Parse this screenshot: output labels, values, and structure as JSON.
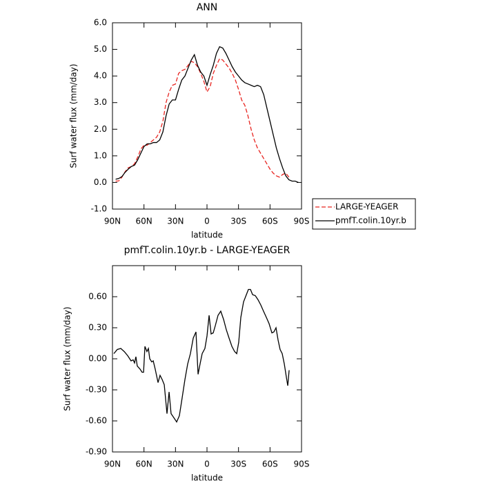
{
  "chart_data": [
    {
      "type": "line",
      "title": "ANN",
      "xlabel": "latitude",
      "ylabel": "Surf water flux (mm/day)",
      "x": [
        87,
        84,
        81,
        78,
        75,
        72,
        69,
        66,
        63,
        60,
        57,
        54,
        51,
        48,
        45,
        42,
        39,
        36,
        33,
        30,
        27,
        24,
        21,
        18,
        15,
        12,
        9,
        6,
        3,
        0,
        -3,
        -6,
        -9,
        -12,
        -15,
        -18,
        -21,
        -24,
        -27,
        -30,
        -33,
        -36,
        -39,
        -42,
        -45,
        -48,
        -51,
        -54,
        -57,
        -60,
        -63,
        -66,
        -69,
        -72,
        -75,
        -78,
        -81,
        -84,
        -87
      ],
      "series": [
        {
          "name": "LARGE-YEAGER",
          "color": "#e8231f",
          "dashed": true,
          "values": [
            0.05,
            0.06,
            0.2,
            0.4,
            0.55,
            0.6,
            0.7,
            0.95,
            1.25,
            1.4,
            1.4,
            1.5,
            1.6,
            1.7,
            1.9,
            2.3,
            3.0,
            3.4,
            3.65,
            3.7,
            4.1,
            4.2,
            4.25,
            4.4,
            4.55,
            4.5,
            4.35,
            4.1,
            3.8,
            3.4,
            3.6,
            4.1,
            4.4,
            4.65,
            4.6,
            4.45,
            4.3,
            4.1,
            3.85,
            3.5,
            3.1,
            2.9,
            2.5,
            2.0,
            1.6,
            1.3,
            1.1,
            0.9,
            0.7,
            0.5,
            0.35,
            0.25,
            0.2,
            0.3,
            0.35,
            0.2,
            null,
            null,
            null
          ]
        },
        {
          "name": "pmfT.colin.10yr.b",
          "color": "#000000",
          "dashed": false,
          "values": [
            0.12,
            0.15,
            0.22,
            0.38,
            0.5,
            0.6,
            0.65,
            0.85,
            1.1,
            1.35,
            1.45,
            1.45,
            1.5,
            1.5,
            1.6,
            1.9,
            2.5,
            2.95,
            3.1,
            3.1,
            3.5,
            3.85,
            4.0,
            4.3,
            4.6,
            4.8,
            4.4,
            4.15,
            4.0,
            3.65,
            4.05,
            4.4,
            4.85,
            5.1,
            5.05,
            4.85,
            4.6,
            4.35,
            4.15,
            4.0,
            3.85,
            3.75,
            3.7,
            3.65,
            3.6,
            3.65,
            3.6,
            3.3,
            2.8,
            2.3,
            1.8,
            1.3,
            0.9,
            0.55,
            0.25,
            0.1,
            0.05,
            0.05,
            0.0
          ]
        }
      ],
      "xlim": [
        90,
        -90
      ],
      "xticks": [
        {
          "value": 90,
          "label": "90N"
        },
        {
          "value": 60,
          "label": "60N"
        },
        {
          "value": 30,
          "label": "30N"
        },
        0,
        {
          "value": -30,
          "label": "30S"
        },
        {
          "value": -60,
          "label": "60S"
        },
        {
          "value": -90,
          "label": "90S"
        }
      ],
      "ylim": [
        -1,
        6
      ],
      "yticks": [
        {
          "value": -1,
          "label": "-1.0"
        },
        {
          "value": 0,
          "label": "0.0"
        },
        {
          "value": 1,
          "label": "1.0"
        },
        {
          "value": 2,
          "label": "2.0"
        },
        {
          "value": 3,
          "label": "3.0"
        },
        {
          "value": 4,
          "label": "4.0"
        },
        {
          "value": 5,
          "label": "5.0"
        },
        {
          "value": 6,
          "label": "6.0"
        }
      ],
      "legend": "right"
    },
    {
      "type": "line",
      "title": "pmfT.colin.10yr.b - LARGE-YEAGER",
      "xlabel": "latitude",
      "ylabel": "Surf water flux (mm/day)",
      "x": [
        88.7,
        85.4,
        82.1,
        78.8,
        75.5,
        72.3,
        70.3,
        69.0,
        67.7,
        66.4,
        63.7,
        61.8,
        60.4,
        59.1,
        57.2,
        55.8,
        54.5,
        52.6,
        51.2,
        49.3,
        46.6,
        44.7,
        42.7,
        40.7,
        38.1,
        36.1,
        34.2,
        31.5,
        28.9,
        26.3,
        23.7,
        21.0,
        18.4,
        15.8,
        13.1,
        10.5,
        8.5,
        6.6,
        4.6,
        2.0,
        0,
        -2.0,
        -3.9,
        -5.9,
        -7.9,
        -10.5,
        -13.1,
        -15.8,
        -18.4,
        -21.0,
        -23.7,
        -26.3,
        -28.3,
        -30.2,
        -32.2,
        -34.8,
        -37.5,
        -39.4,
        -41.4,
        -43.4,
        -46.0,
        -48.6,
        -51.2,
        -53.8,
        -56.5,
        -59.1,
        -61.8,
        -63.7,
        -65.7,
        -67.7,
        -69.6,
        -71.6,
        -73.6,
        -75.6,
        -76.9,
        -78.2
      ],
      "values": [
        0.05,
        0.09,
        0.1,
        0.07,
        0.03,
        -0.02,
        -0.01,
        -0.04,
        0.02,
        -0.07,
        -0.1,
        -0.13,
        -0.13,
        0.12,
        0.07,
        0.1,
        0.0,
        -0.03,
        -0.02,
        -0.1,
        -0.23,
        -0.16,
        -0.2,
        -0.25,
        -0.53,
        -0.32,
        -0.53,
        -0.57,
        -0.61,
        -0.55,
        -0.38,
        -0.2,
        -0.05,
        0.05,
        0.2,
        0.26,
        -0.15,
        -0.05,
        0.05,
        0.1,
        0.22,
        0.42,
        0.24,
        0.25,
        0.32,
        0.42,
        0.46,
        0.38,
        0.28,
        0.2,
        0.12,
        0.07,
        0.05,
        0.16,
        0.4,
        0.55,
        0.62,
        0.67,
        0.67,
        0.62,
        0.61,
        0.57,
        0.52,
        0.46,
        0.4,
        0.34,
        0.25,
        0.26,
        0.3,
        0.18,
        0.09,
        0.05,
        -0.05,
        -0.18,
        -0.26,
        -0.11
      ],
      "color": "#000000",
      "xlim": [
        90,
        -90
      ],
      "xticks": [
        {
          "value": 90,
          "label": "90N"
        },
        {
          "value": 60,
          "label": "60N"
        },
        {
          "value": 30,
          "label": "30N"
        },
        0,
        {
          "value": -30,
          "label": "30S"
        },
        {
          "value": -60,
          "label": "60S"
        },
        {
          "value": -90,
          "label": "90S"
        }
      ],
      "ylim": [
        -0.9,
        0.9
      ],
      "yticks": [
        {
          "value": -0.9,
          "label": "-0.90"
        },
        {
          "value": -0.6,
          "label": "-0.60"
        },
        {
          "value": -0.3,
          "label": "-0.30"
        },
        {
          "value": 0,
          "label": "0.00"
        },
        {
          "value": 0.3,
          "label": "0.30"
        },
        {
          "value": 0.6,
          "label": "0.60"
        }
      ]
    }
  ]
}
